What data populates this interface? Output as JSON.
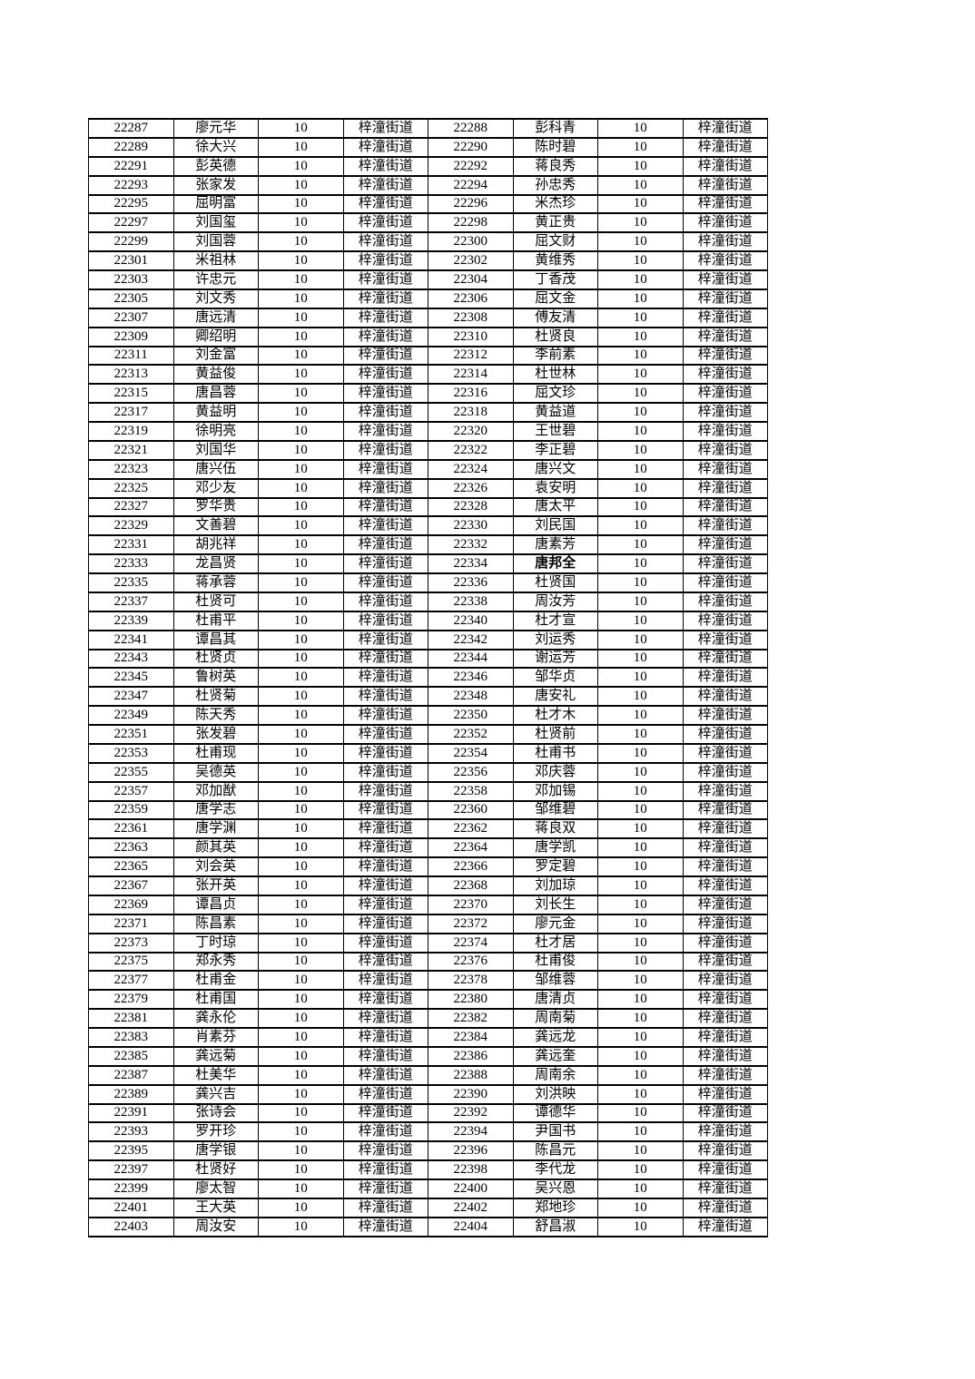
{
  "page": {
    "background_color": "#ffffff",
    "text_color": "#000000"
  },
  "table": {
    "score_value": "10",
    "street_value": "梓潼街道",
    "bold_name_ids": [
      "22334"
    ],
    "rows": [
      {
        "left_id": "22287",
        "left_name": "廖元华",
        "right_id": "22288",
        "right_name": "彭科青"
      },
      {
        "left_id": "22289",
        "left_name": "徐大兴",
        "right_id": "22290",
        "right_name": "陈时碧"
      },
      {
        "left_id": "22291",
        "left_name": "彭英德",
        "right_id": "22292",
        "right_name": "蒋良秀"
      },
      {
        "left_id": "22293",
        "left_name": "张家发",
        "right_id": "22294",
        "right_name": "孙忠秀"
      },
      {
        "left_id": "22295",
        "left_name": "屈明富",
        "right_id": "22296",
        "right_name": "米杰珍"
      },
      {
        "left_id": "22297",
        "left_name": "刘国玺",
        "right_id": "22298",
        "right_name": "黄正贵"
      },
      {
        "left_id": "22299",
        "left_name": "刘国蓉",
        "right_id": "22300",
        "right_name": "屈文财"
      },
      {
        "left_id": "22301",
        "left_name": "米祖林",
        "right_id": "22302",
        "right_name": "黄维秀"
      },
      {
        "left_id": "22303",
        "left_name": "许忠元",
        "right_id": "22304",
        "right_name": "丁香茂"
      },
      {
        "left_id": "22305",
        "left_name": "刘文秀",
        "right_id": "22306",
        "right_name": "屈文金"
      },
      {
        "left_id": "22307",
        "left_name": "唐远清",
        "right_id": "22308",
        "right_name": "傅友清"
      },
      {
        "left_id": "22309",
        "left_name": "卿绍明",
        "right_id": "22310",
        "right_name": "杜贤良"
      },
      {
        "left_id": "22311",
        "left_name": "刘金富",
        "right_id": "22312",
        "right_name": "李前素"
      },
      {
        "left_id": "22313",
        "left_name": "黄益俊",
        "right_id": "22314",
        "right_name": "杜世林"
      },
      {
        "left_id": "22315",
        "left_name": "唐昌蓉",
        "right_id": "22316",
        "right_name": "屈文珍"
      },
      {
        "left_id": "22317",
        "left_name": "黄益明",
        "right_id": "22318",
        "right_name": "黄益道"
      },
      {
        "left_id": "22319",
        "left_name": "徐明亮",
        "right_id": "22320",
        "right_name": "王世碧"
      },
      {
        "left_id": "22321",
        "left_name": "刘国华",
        "right_id": "22322",
        "right_name": "李正碧"
      },
      {
        "left_id": "22323",
        "left_name": "唐兴伍",
        "right_id": "22324",
        "right_name": "唐兴文"
      },
      {
        "left_id": "22325",
        "left_name": "邓少友",
        "right_id": "22326",
        "right_name": "袁安明"
      },
      {
        "left_id": "22327",
        "left_name": "罗华贵",
        "right_id": "22328",
        "right_name": "唐太平"
      },
      {
        "left_id": "22329",
        "left_name": "文善碧",
        "right_id": "22330",
        "right_name": "刘民国"
      },
      {
        "left_id": "22331",
        "left_name": "胡兆祥",
        "right_id": "22332",
        "right_name": "唐素芳"
      },
      {
        "left_id": "22333",
        "left_name": "龙昌贤",
        "right_id": "22334",
        "right_name": "唐邦全"
      },
      {
        "left_id": "22335",
        "left_name": "蒋承蓉",
        "right_id": "22336",
        "right_name": "杜贤国"
      },
      {
        "left_id": "22337",
        "left_name": "杜贤可",
        "right_id": "22338",
        "right_name": "周汝芳"
      },
      {
        "left_id": "22339",
        "left_name": "杜甫平",
        "right_id": "22340",
        "right_name": "杜才宣"
      },
      {
        "left_id": "22341",
        "left_name": "谭昌其",
        "right_id": "22342",
        "right_name": "刘运秀"
      },
      {
        "left_id": "22343",
        "left_name": "杜贤贞",
        "right_id": "22344",
        "right_name": "谢运芳"
      },
      {
        "left_id": "22345",
        "left_name": "鲁树英",
        "right_id": "22346",
        "right_name": "邹华贞"
      },
      {
        "left_id": "22347",
        "left_name": "杜贤菊",
        "right_id": "22348",
        "right_name": "唐安礼"
      },
      {
        "left_id": "22349",
        "left_name": "陈天秀",
        "right_id": "22350",
        "right_name": "杜才木"
      },
      {
        "left_id": "22351",
        "left_name": "张发碧",
        "right_id": "22352",
        "right_name": "杜贤前"
      },
      {
        "left_id": "22353",
        "left_name": "杜甫现",
        "right_id": "22354",
        "right_name": "杜甫书"
      },
      {
        "left_id": "22355",
        "left_name": "吴德英",
        "right_id": "22356",
        "right_name": "邓庆蓉"
      },
      {
        "left_id": "22357",
        "left_name": "邓加猷",
        "right_id": "22358",
        "right_name": "邓加锡"
      },
      {
        "left_id": "22359",
        "left_name": "唐学志",
        "right_id": "22360",
        "right_name": "邹维碧"
      },
      {
        "left_id": "22361",
        "left_name": "唐学渊",
        "right_id": "22362",
        "right_name": "蒋良双"
      },
      {
        "left_id": "22363",
        "left_name": "颜其英",
        "right_id": "22364",
        "right_name": "唐学凯"
      },
      {
        "left_id": "22365",
        "left_name": "刘会英",
        "right_id": "22366",
        "right_name": "罗定碧"
      },
      {
        "left_id": "22367",
        "left_name": "张开英",
        "right_id": "22368",
        "right_name": "刘加琼"
      },
      {
        "left_id": "22369",
        "left_name": "谭昌贞",
        "right_id": "22370",
        "right_name": "刘长生"
      },
      {
        "left_id": "22371",
        "left_name": "陈昌素",
        "right_id": "22372",
        "right_name": "廖元金"
      },
      {
        "left_id": "22373",
        "left_name": "丁时琼",
        "right_id": "22374",
        "right_name": "杜才居"
      },
      {
        "left_id": "22375",
        "left_name": "郑永秀",
        "right_id": "22376",
        "right_name": "杜甫俊"
      },
      {
        "left_id": "22377",
        "left_name": "杜甫金",
        "right_id": "22378",
        "right_name": "邹维蓉"
      },
      {
        "left_id": "22379",
        "left_name": "杜甫国",
        "right_id": "22380",
        "right_name": "唐清贞"
      },
      {
        "left_id": "22381",
        "left_name": "龚永伦",
        "right_id": "22382",
        "right_name": "周南菊"
      },
      {
        "left_id": "22383",
        "left_name": "肖素芬",
        "right_id": "22384",
        "right_name": "龚远龙"
      },
      {
        "left_id": "22385",
        "left_name": "龚远菊",
        "right_id": "22386",
        "right_name": "龚远奎"
      },
      {
        "left_id": "22387",
        "left_name": "杜美华",
        "right_id": "22388",
        "right_name": "周南余"
      },
      {
        "left_id": "22389",
        "left_name": "龚兴吉",
        "right_id": "22390",
        "right_name": "刘洪映"
      },
      {
        "left_id": "22391",
        "left_name": "张诗会",
        "right_id": "22392",
        "right_name": "谭德华"
      },
      {
        "left_id": "22393",
        "left_name": "罗开珍",
        "right_id": "22394",
        "right_name": "尹国书"
      },
      {
        "left_id": "22395",
        "left_name": "唐学银",
        "right_id": "22396",
        "right_name": "陈昌元"
      },
      {
        "left_id": "22397",
        "left_name": "杜贤好",
        "right_id": "22398",
        "right_name": "李代龙"
      },
      {
        "left_id": "22399",
        "left_name": "廖太智",
        "right_id": "22400",
        "right_name": "吴兴恩"
      },
      {
        "left_id": "22401",
        "left_name": "王大英",
        "right_id": "22402",
        "right_name": "郑地珍"
      },
      {
        "left_id": "22403",
        "left_name": "周汝安",
        "right_id": "22404",
        "right_name": "舒昌淑"
      }
    ]
  }
}
